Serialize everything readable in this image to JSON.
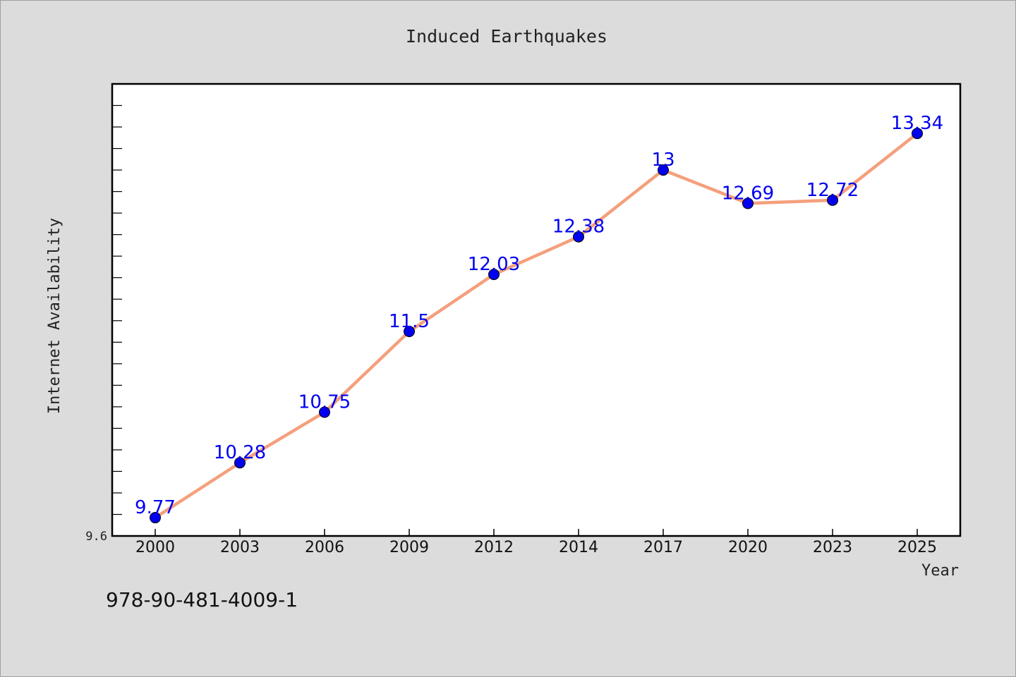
{
  "chart_data": {
    "type": "line",
    "title": "Induced Earthquakes",
    "xlabel": "Year",
    "ylabel": "Internet Availability",
    "x": [
      "2000",
      "2003",
      "2006",
      "2009",
      "2012",
      "2014",
      "2017",
      "2020",
      "2023",
      "2025"
    ],
    "series": [
      {
        "values": [
          9.77,
          10.28,
          10.75,
          11.5,
          12.03,
          12.38,
          13,
          12.69,
          12.72,
          13.34
        ]
      }
    ],
    "data_labels": [
      "9.77",
      "10.28",
      "10.75",
      "11.5",
      "12.03",
      "12.38",
      "13",
      "12.69",
      "12.72",
      "13.34"
    ],
    "ylim": [
      9.6,
      13.8
    ],
    "y_tick_label": "9.6",
    "grid": false,
    "line_color": "#f4a07c",
    "marker_color": "#0000ee"
  },
  "footer": {
    "isbn": "978-90-481-4009-1"
  }
}
